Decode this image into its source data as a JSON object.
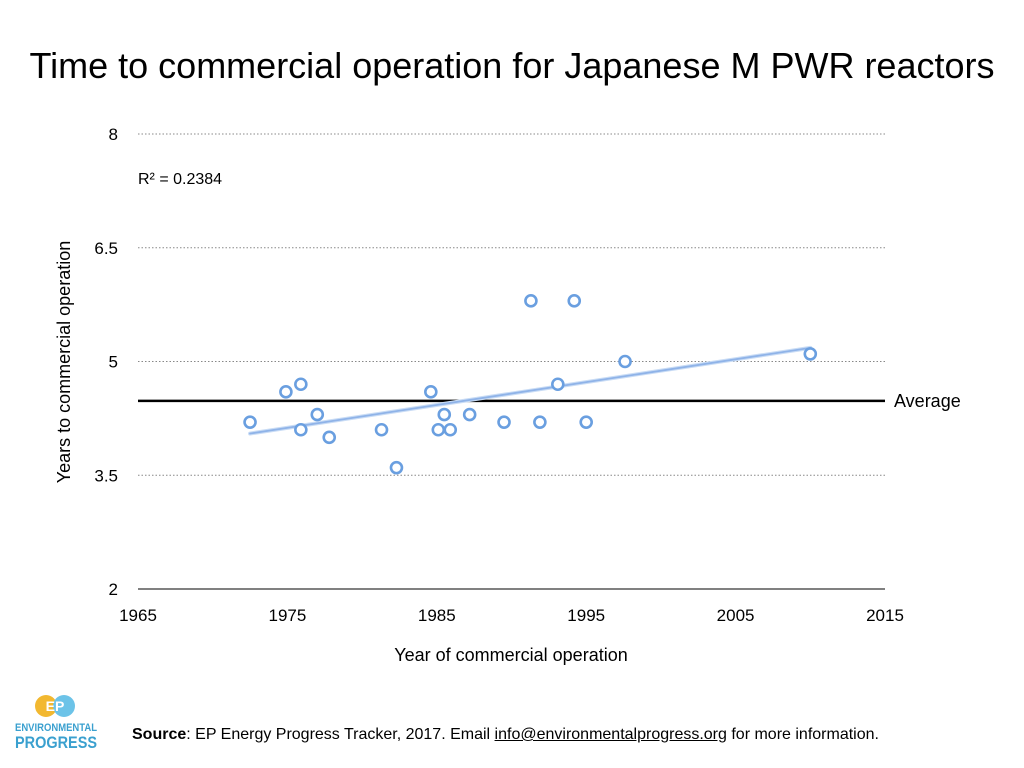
{
  "chart_data": {
    "type": "scatter",
    "title": "Time to commercial operation for Japanese M PWR reactors",
    "xlabel": "Year of commercial operation",
    "ylabel": "Years to commercial operation",
    "xlim": [
      1965,
      2015
    ],
    "ylim": [
      2,
      8
    ],
    "xticks": [
      1965,
      1975,
      1985,
      1995,
      2005,
      2015
    ],
    "yticks": [
      2,
      3.5,
      5,
      6.5,
      8
    ],
    "grid": "horizontal dotted",
    "points": [
      {
        "x": 1972.5,
        "y": 4.2
      },
      {
        "x": 1974.9,
        "y": 4.6
      },
      {
        "x": 1975.9,
        "y": 4.7
      },
      {
        "x": 1975.9,
        "y": 4.1
      },
      {
        "x": 1977.0,
        "y": 4.3
      },
      {
        "x": 1977.8,
        "y": 4.0
      },
      {
        "x": 1981.3,
        "y": 4.1
      },
      {
        "x": 1982.3,
        "y": 3.6
      },
      {
        "x": 1984.6,
        "y": 4.6
      },
      {
        "x": 1985.1,
        "y": 4.1
      },
      {
        "x": 1985.5,
        "y": 4.3
      },
      {
        "x": 1985.9,
        "y": 4.1
      },
      {
        "x": 1987.2,
        "y": 4.3
      },
      {
        "x": 1989.5,
        "y": 4.2
      },
      {
        "x": 1991.3,
        "y": 5.8
      },
      {
        "x": 1991.9,
        "y": 4.2
      },
      {
        "x": 1993.1,
        "y": 4.7
      },
      {
        "x": 1994.2,
        "y": 5.8
      },
      {
        "x": 1995.0,
        "y": 4.2
      },
      {
        "x": 1997.6,
        "y": 5.0
      },
      {
        "x": 2010.0,
        "y": 5.1
      }
    ],
    "trendline": {
      "x": [
        1972.5,
        2010.0
      ],
      "y": [
        4.05,
        5.18
      ],
      "r2_label": "R² = 0.2384"
    },
    "average": {
      "y": 4.48,
      "label": "Average"
    },
    "colors": {
      "points": "#6a9fe0",
      "trend": "#8fb3e8",
      "average": "#000000",
      "grid": "#888888"
    }
  },
  "footer": {
    "source_label": "Source",
    "source_text": ": EP Energy Progress Tracker, 2017. Email ",
    "email": "info@environmentalprogress.org",
    "tail": " for more information."
  },
  "logo": {
    "mark": "EP",
    "line1": "ENVIRONMENTAL",
    "line2": "PROGRESS"
  }
}
